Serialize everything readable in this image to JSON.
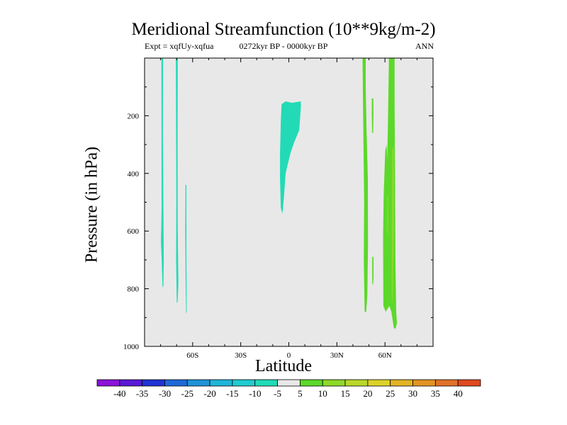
{
  "chart_data": {
    "type": "contour-map",
    "title": "Meridional Streamfunction (10**9kg/m-2)",
    "subtitle_left": "Expt = xqfUy-xqfua",
    "subtitle_center": "0272kyr BP - 0000kyr BP",
    "subtitle_right": "ANN",
    "xlabel": "Latitude",
    "ylabel": "Pressure (in hPa)",
    "xlim": [
      -90,
      90
    ],
    "ylim": [
      1000,
      0
    ],
    "x_ticks": [
      {
        "value": -60,
        "label": "60S"
      },
      {
        "value": -30,
        "label": "30S"
      },
      {
        "value": 0,
        "label": "0"
      },
      {
        "value": 30,
        "label": "30N"
      },
      {
        "value": 60,
        "label": "60N"
      }
    ],
    "y_ticks": [
      {
        "value": 200,
        "label": "200"
      },
      {
        "value": 400,
        "label": "400"
      },
      {
        "value": 600,
        "label": "600"
      },
      {
        "value": 800,
        "label": "800"
      },
      {
        "value": 1000,
        "label": "1000"
      }
    ],
    "colorbar": {
      "labels": [
        "-40",
        "-35",
        "-30",
        "-25",
        "-20",
        "-15",
        "-10",
        "-5",
        "5",
        "10",
        "15",
        "20",
        "25",
        "30",
        "35",
        "40"
      ],
      "colors": [
        "#8a12d8",
        "#5a18d6",
        "#2233d6",
        "#1f6ad8",
        "#1f93d8",
        "#1fb5d8",
        "#20ccd0",
        "#22dbb6",
        "#e8e8e8",
        "#5cd82a",
        "#8ed82a",
        "#b9d82a",
        "#dcd22a",
        "#e2b424",
        "#e29424",
        "#e2722a",
        "#e04a1e"
      ],
      "neutral_range": [
        -5,
        5
      ]
    },
    "regions": [
      {
        "name": "teal-band-78S",
        "level": -7.5,
        "color": "#22dbb6",
        "polygon": [
          [
            -79.5,
            0
          ],
          [
            -78.5,
            0
          ],
          [
            -78.6,
            260
          ],
          [
            -78.3,
            500
          ],
          [
            -78.0,
            700
          ],
          [
            -78.3,
            790
          ],
          [
            -78.8,
            795
          ],
          [
            -79.3,
            700
          ],
          [
            -79.8,
            640
          ],
          [
            -79.4,
            520
          ],
          [
            -79.5,
            0
          ]
        ]
      },
      {
        "name": "teal-band-70S",
        "level": -7.5,
        "color": "#22dbb6",
        "polygon": [
          [
            -70.5,
            0
          ],
          [
            -69.3,
            0
          ],
          [
            -69.4,
            300
          ],
          [
            -69.3,
            600
          ],
          [
            -68.9,
            780
          ],
          [
            -69.4,
            845
          ],
          [
            -69.9,
            850
          ],
          [
            -70.3,
            700
          ],
          [
            -70.2,
            500
          ],
          [
            -70.5,
            0
          ]
        ]
      },
      {
        "name": "teal-band-64S",
        "level": -7.5,
        "color": "#22dbb6",
        "polygon": [
          [
            -64.5,
            440
          ],
          [
            -63.9,
            440
          ],
          [
            -63.9,
            700
          ],
          [
            -63.7,
            880
          ],
          [
            -64.1,
            885
          ],
          [
            -64.4,
            780
          ],
          [
            -64.6,
            600
          ],
          [
            -64.5,
            440
          ]
        ]
      },
      {
        "name": "teal-equatorial-cell",
        "level": -7.5,
        "color": "#22dbb6",
        "polygon": [
          [
            -4.5,
            160
          ],
          [
            -2.0,
            150
          ],
          [
            2.0,
            155
          ],
          [
            7.5,
            150
          ],
          [
            7.5,
            170
          ],
          [
            6.5,
            250
          ],
          [
            3.5,
            290
          ],
          [
            1.0,
            330
          ],
          [
            -2.0,
            400
          ],
          [
            -3.0,
            480
          ],
          [
            -4.0,
            540
          ],
          [
            -5.0,
            520
          ],
          [
            -5.5,
            420
          ],
          [
            -5.5,
            330
          ],
          [
            -5.0,
            220
          ],
          [
            -4.5,
            160
          ]
        ]
      },
      {
        "name": "green-band-47N",
        "level": 7.5,
        "color": "#5cd82a",
        "polygon": [
          [
            46.0,
            0
          ],
          [
            48.0,
            0
          ],
          [
            48.0,
            100
          ],
          [
            48.5,
            250
          ],
          [
            49.3,
            420
          ],
          [
            49.4,
            650
          ],
          [
            49.0,
            820
          ],
          [
            48.3,
            880
          ],
          [
            47.3,
            880
          ],
          [
            46.8,
            700
          ],
          [
            47.0,
            500
          ],
          [
            46.5,
            250
          ],
          [
            46.0,
            0
          ]
        ]
      },
      {
        "name": "green-band-52N-upper",
        "level": 7.5,
        "color": "#5cd82a",
        "polygon": [
          [
            51.8,
            140
          ],
          [
            52.7,
            140
          ],
          [
            52.8,
            200
          ],
          [
            52.6,
            260
          ],
          [
            52.0,
            260
          ],
          [
            51.8,
            200
          ],
          [
            51.8,
            140
          ]
        ]
      },
      {
        "name": "green-band-52N-lower",
        "level": 7.5,
        "color": "#5cd82a",
        "polygon": [
          [
            52.0,
            690
          ],
          [
            52.8,
            690
          ],
          [
            52.9,
            760
          ],
          [
            52.5,
            790
          ],
          [
            52.1,
            780
          ],
          [
            52.0,
            690
          ]
        ]
      },
      {
        "name": "green-cell-60N",
        "level": 7.5,
        "color": "#5cd82a",
        "polygon": [
          [
            62.5,
            0
          ],
          [
            66.0,
            0
          ],
          [
            66.0,
            150
          ],
          [
            66.3,
            400
          ],
          [
            66.5,
            700
          ],
          [
            67.0,
            880
          ],
          [
            67.5,
            920
          ],
          [
            66.5,
            940
          ],
          [
            65.5,
            935
          ],
          [
            64.0,
            880
          ],
          [
            62.8,
            860
          ],
          [
            61.5,
            870
          ],
          [
            60.5,
            880
          ],
          [
            59.0,
            860
          ],
          [
            58.8,
            620
          ],
          [
            59.2,
            470
          ],
          [
            60.2,
            320
          ],
          [
            61.0,
            300
          ],
          [
            61.4,
            350
          ],
          [
            61.8,
            250
          ],
          [
            62.5,
            0
          ]
        ]
      },
      {
        "name": "yellowgreen-core-62N",
        "level": 12.5,
        "color": "#8ed82a",
        "polygon": [
          [
            61.3,
            480
          ],
          [
            61.9,
            480
          ],
          [
            62.0,
            580
          ],
          [
            61.8,
            620
          ],
          [
            61.4,
            600
          ],
          [
            61.3,
            480
          ]
        ]
      },
      {
        "name": "yellowgreen-core-65N",
        "level": 12.5,
        "color": "#8ed82a",
        "polygon": [
          [
            64.5,
            320
          ],
          [
            65.5,
            300
          ],
          [
            65.6,
            450
          ],
          [
            65.5,
            600
          ],
          [
            65.0,
            760
          ],
          [
            64.8,
            850
          ],
          [
            64.2,
            830
          ],
          [
            64.2,
            600
          ],
          [
            64.5,
            320
          ]
        ]
      }
    ]
  }
}
